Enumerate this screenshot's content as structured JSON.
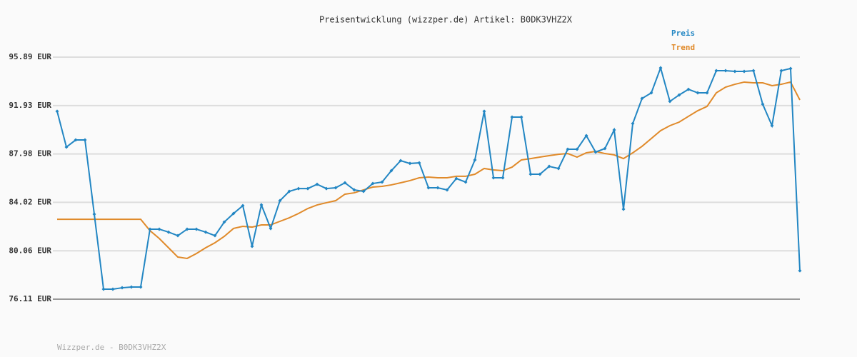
{
  "chart_data": {
    "type": "line",
    "title": "Preisentwicklung (wizzper.de) Artikel: B0DK3VHZ2X",
    "footer": "Wizzper.de - B0DK3VHZ2X",
    "ylim": [
      76.11,
      95.89
    ],
    "yticks": [
      {
        "value": 95.89,
        "label": "95.89 EUR"
      },
      {
        "value": 91.93,
        "label": "91.93 EUR"
      },
      {
        "value": 87.98,
        "label": "87.98 EUR"
      },
      {
        "value": 84.02,
        "label": "84.02 EUR"
      },
      {
        "value": 80.06,
        "label": "80.06 EUR"
      },
      {
        "value": 76.11,
        "label": "76.11 EUR"
      }
    ],
    "grid": true,
    "legend": "top-right",
    "series": [
      {
        "name": "Preis",
        "color": "#2286c3",
        "markers": true,
        "values": [
          91.46,
          88.54,
          89.12,
          89.12,
          83.05,
          76.93,
          76.93,
          77.04,
          77.1,
          77.1,
          81.83,
          81.83,
          81.59,
          81.3,
          81.83,
          81.83,
          81.59,
          81.3,
          82.41,
          83.11,
          83.75,
          80.43,
          83.81,
          81.89,
          84.16,
          84.92,
          85.15,
          85.15,
          85.5,
          85.15,
          85.21,
          85.62,
          85.04,
          84.92,
          85.56,
          85.68,
          86.61,
          87.43,
          87.2,
          87.25,
          85.21,
          85.21,
          85.04,
          85.97,
          85.68,
          87.49,
          91.46,
          86.03,
          86.03,
          90.99,
          90.99,
          86.32,
          86.32,
          86.96,
          86.79,
          88.36,
          88.36,
          89.47,
          88.13,
          88.42,
          89.94,
          83.46,
          90.46,
          92.51,
          92.97,
          95.01,
          92.27,
          92.8,
          93.26,
          92.97,
          92.97,
          94.78,
          94.78,
          94.72,
          94.72,
          94.78,
          92.04,
          90.29,
          94.78,
          94.96,
          78.44
        ]
      },
      {
        "name": "Trend",
        "color": "#e08a2a",
        "markers": false,
        "values": [
          82.64,
          82.64,
          82.64,
          82.64,
          82.64,
          82.64,
          82.64,
          82.64,
          82.64,
          82.64,
          81.71,
          81.07,
          80.31,
          79.55,
          79.44,
          79.84,
          80.31,
          80.72,
          81.24,
          81.89,
          82.06,
          82.0,
          82.18,
          82.18,
          82.47,
          82.76,
          83.11,
          83.52,
          83.81,
          83.99,
          84.16,
          84.69,
          84.8,
          85.04,
          85.27,
          85.33,
          85.45,
          85.62,
          85.8,
          86.03,
          86.09,
          86.03,
          86.03,
          86.15,
          86.15,
          86.32,
          86.79,
          86.67,
          86.61,
          86.9,
          87.49,
          87.6,
          87.72,
          87.84,
          87.95,
          88.01,
          87.72,
          88.07,
          88.19,
          88.01,
          87.9,
          87.6,
          88.07,
          88.6,
          89.24,
          89.88,
          90.29,
          90.58,
          91.05,
          91.51,
          91.86,
          92.97,
          93.44,
          93.67,
          93.85,
          93.79,
          93.79,
          93.56,
          93.67,
          93.85,
          92.39
        ]
      }
    ]
  }
}
